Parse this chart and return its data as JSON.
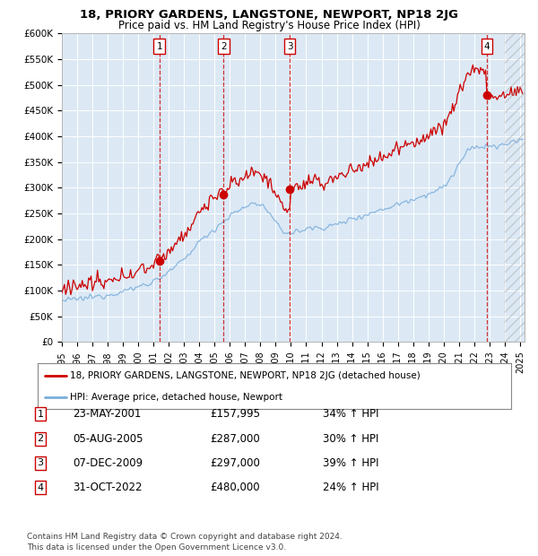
{
  "title": "18, PRIORY GARDENS, LANGSTONE, NEWPORT, NP18 2JG",
  "subtitle": "Price paid vs. HM Land Registry's House Price Index (HPI)",
  "plot_bg_color": "#dce9f5",
  "ylim": [
    0,
    600000
  ],
  "ytick_labels": [
    "£0",
    "£50K",
    "£100K",
    "£150K",
    "£200K",
    "£250K",
    "£300K",
    "£350K",
    "£400K",
    "£450K",
    "£500K",
    "£550K",
    "£600K"
  ],
  "sale_prices": [
    157995,
    287000,
    297000,
    480000
  ],
  "sale_years_float": [
    2001.388,
    2005.583,
    2009.917,
    2022.832
  ],
  "sale_labels": [
    "1",
    "2",
    "3",
    "4"
  ],
  "legend_line1": "18, PRIORY GARDENS, LANGSTONE, NEWPORT, NP18 2JG (detached house)",
  "legend_line2": "HPI: Average price, detached house, Newport",
  "table_rows": [
    [
      "1",
      "23-MAY-2001",
      "£157,995",
      "34% ↑ HPI"
    ],
    [
      "2",
      "05-AUG-2005",
      "£287,000",
      "30% ↑ HPI"
    ],
    [
      "3",
      "07-DEC-2009",
      "£297,000",
      "39% ↑ HPI"
    ],
    [
      "4",
      "31-OCT-2022",
      "£480,000",
      "24% ↑ HPI"
    ]
  ],
  "footer": "Contains HM Land Registry data © Crown copyright and database right 2024.\nThis data is licensed under the Open Government Licence v3.0.",
  "red_color": "#cc0000",
  "blue_color": "#7aaddc",
  "xlim_start": 1995.0,
  "xlim_end": 2025.3
}
